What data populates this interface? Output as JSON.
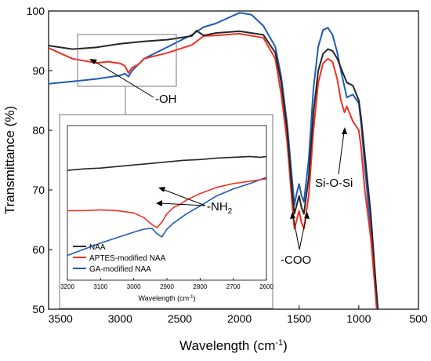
{
  "chart_data": {
    "type": "line",
    "xlabel": "Wavelength (cm",
    "xlabel_sup": "-1",
    "xlabel_end": ")",
    "ylabel": "Transmittance (%)",
    "xlim": [
      3600,
      500
    ],
    "ylim": [
      50,
      100
    ],
    "x_ticks": [
      3500,
      3000,
      2500,
      2000,
      1500,
      1000,
      500
    ],
    "y_ticks": [
      50,
      60,
      70,
      80,
      90,
      100
    ],
    "grid": false,
    "colors": {
      "NAA": "#262626",
      "APTES": "#ee3124",
      "GA": "#1f5bb8"
    },
    "series": [
      {
        "name": "NAA",
        "x": [
          3600,
          3400,
          3200,
          3000,
          2800,
          2600,
          2400,
          2360,
          2300,
          2200,
          2000,
          1800,
          1700,
          1650,
          1600,
          1560,
          1540,
          1520,
          1500,
          1480,
          1460,
          1420,
          1380,
          1340,
          1300,
          1260,
          1220,
          1180,
          1150,
          1100,
          1050,
          1000,
          980,
          950,
          900,
          860,
          840
        ],
        "y": [
          94.2,
          93.6,
          93.9,
          94.5,
          94.9,
          95.2,
          95.8,
          96.7,
          95.9,
          96.3,
          96.6,
          96.0,
          93.0,
          88.0,
          80.0,
          70.0,
          66.0,
          67.5,
          69.0,
          67.0,
          66.0,
          72.0,
          83.0,
          90.0,
          92.8,
          93.6,
          93.3,
          92.0,
          90.5,
          88.0,
          87.5,
          85.0,
          82.0,
          76.0,
          66.0,
          55.0,
          50.0
        ]
      },
      {
        "name": "APTES-modified NAA",
        "x": [
          3600,
          3400,
          3200,
          3100,
          3000,
          2960,
          2930,
          2900,
          2850,
          2800,
          2600,
          2400,
          2300,
          2200,
          2000,
          1800,
          1700,
          1650,
          1600,
          1560,
          1540,
          1520,
          1500,
          1480,
          1460,
          1420,
          1380,
          1340,
          1300,
          1260,
          1220,
          1180,
          1150,
          1120,
          1100,
          1050,
          1000,
          980,
          950,
          900,
          870,
          850
        ],
        "y": [
          93.8,
          92.0,
          91.3,
          91.5,
          91.2,
          90.8,
          89.6,
          90.5,
          91.0,
          92.0,
          93.0,
          94.3,
          95.8,
          95.9,
          96.2,
          95.5,
          92.0,
          86.0,
          78.0,
          68.0,
          63.5,
          65.0,
          66.5,
          64.5,
          63.5,
          69.0,
          80.0,
          88.0,
          91.2,
          92.0,
          91.5,
          88.5,
          85.0,
          83.0,
          84.0,
          81.5,
          80.0,
          77.0,
          70.0,
          62.0,
          55.0,
          50.0
        ]
      },
      {
        "name": "GA-modified NAA",
        "x": [
          3600,
          3400,
          3200,
          3100,
          3000,
          2960,
          2930,
          2900,
          2850,
          2800,
          2600,
          2400,
          2300,
          2200,
          2100,
          2000,
          1900,
          1800,
          1700,
          1650,
          1600,
          1560,
          1540,
          1520,
          1500,
          1480,
          1460,
          1420,
          1380,
          1340,
          1300,
          1260,
          1220,
          1180,
          1150,
          1100,
          1050,
          1000,
          980,
          950,
          900,
          860,
          840
        ],
        "y": [
          87.8,
          88.2,
          88.6,
          88.9,
          89.2,
          89.5,
          89.0,
          90.0,
          91.0,
          92.0,
          94.0,
          96.0,
          97.3,
          97.9,
          98.8,
          99.7,
          99.4,
          97.5,
          94.0,
          89.0,
          81.0,
          72.0,
          67.5,
          69.5,
          71.0,
          69.0,
          68.0,
          75.0,
          87.0,
          94.0,
          96.8,
          97.2,
          96.0,
          93.0,
          90.0,
          85.5,
          86.0,
          84.5,
          81.0,
          74.0,
          63.0,
          54.0,
          50.0
        ]
      }
    ],
    "inset": {
      "xlabel": "Wavelength (cm",
      "xlabel_sup": "-1",
      "xlabel_end": ")",
      "xlim": [
        3200,
        2600
      ],
      "x_ticks": [
        3200,
        3100,
        3000,
        2900,
        2800,
        2700,
        2600
      ],
      "series": [
        {
          "name": "NAA",
          "x": [
            3200,
            3150,
            3100,
            3050,
            3000,
            2950,
            2900,
            2850,
            2800,
            2750,
            2700,
            2650,
            2620,
            2600
          ],
          "y": [
            0.71,
            0.72,
            0.725,
            0.735,
            0.745,
            0.755,
            0.765,
            0.775,
            0.78,
            0.79,
            0.795,
            0.8,
            0.795,
            0.8
          ]
        },
        {
          "name": "APTES-modified NAA",
          "x": [
            3200,
            3150,
            3100,
            3050,
            3000,
            2970,
            2945,
            2930,
            2915,
            2900,
            2880,
            2860,
            2840,
            2800,
            2750,
            2700,
            2650,
            2600
          ],
          "y": [
            0.45,
            0.45,
            0.455,
            0.45,
            0.435,
            0.405,
            0.36,
            0.34,
            0.375,
            0.43,
            0.47,
            0.49,
            0.52,
            0.56,
            0.6,
            0.625,
            0.64,
            0.655
          ]
        },
        {
          "name": "GA-modified NAA",
          "x": [
            3200,
            3150,
            3100,
            3050,
            3000,
            2970,
            2945,
            2930,
            2915,
            2900,
            2880,
            2860,
            2840,
            2800,
            2750,
            2700,
            2650,
            2600
          ],
          "y": [
            0.16,
            0.2,
            0.24,
            0.275,
            0.31,
            0.33,
            0.335,
            0.3,
            0.28,
            0.33,
            0.37,
            0.4,
            0.43,
            0.48,
            0.545,
            0.59,
            0.625,
            0.665
          ]
        }
      ],
      "legend": [
        "NAA",
        "APTES-modified NAA",
        "GA-modified NAA"
      ]
    },
    "annotations": {
      "oh": "-OH",
      "nh2": "-NH",
      "nh2_sub": "2",
      "coo": "-COO",
      "sioSi": "Si-O-Si"
    }
  }
}
